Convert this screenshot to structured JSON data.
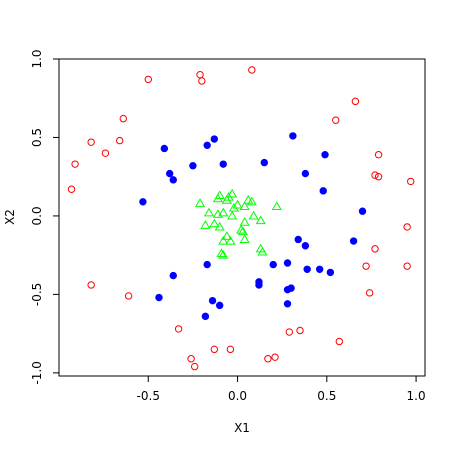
{
  "chart_data": {
    "type": "scatter",
    "title": "",
    "xlabel": "X1",
    "ylabel": "X2",
    "xlim": [
      -1.0,
      1.05
    ],
    "ylim": [
      -1.02,
      1.0
    ],
    "x_ticks": [
      -0.5,
      0.0,
      0.5,
      1.0
    ],
    "x_tick_labels": [
      "-0.5",
      "0.0",
      "0.5",
      "1.0"
    ],
    "y_ticks": [
      -1.0,
      -0.5,
      0.0,
      0.5,
      1.0
    ],
    "y_tick_labels": [
      "-1.0",
      "-0.5",
      "0.0",
      "0.5",
      "1.0"
    ],
    "grid": false,
    "series": [
      {
        "marker": "open-circle",
        "color": "#ff0000",
        "points": [
          [
            0.08,
            0.93
          ],
          [
            -0.21,
            0.9
          ],
          [
            -0.2,
            0.86
          ],
          [
            -0.5,
            0.87
          ],
          [
            -0.64,
            0.62
          ],
          [
            -0.82,
            0.47
          ],
          [
            -0.74,
            0.4
          ],
          [
            -0.66,
            0.48
          ],
          [
            -0.91,
            0.33
          ],
          [
            -0.93,
            0.17
          ],
          [
            0.66,
            0.73
          ],
          [
            0.55,
            0.61
          ],
          [
            0.79,
            0.39
          ],
          [
            0.77,
            0.26
          ],
          [
            0.79,
            0.25
          ],
          [
            0.97,
            0.22
          ],
          [
            0.95,
            -0.07
          ],
          [
            0.77,
            -0.21
          ],
          [
            0.72,
            -0.32
          ],
          [
            0.95,
            -0.32
          ],
          [
            0.74,
            -0.49
          ],
          [
            -0.82,
            -0.44
          ],
          [
            -0.61,
            -0.51
          ],
          [
            -0.33,
            -0.72
          ],
          [
            -0.13,
            -0.85
          ],
          [
            -0.04,
            -0.85
          ],
          [
            0.29,
            -0.74
          ],
          [
            0.35,
            -0.73
          ],
          [
            0.57,
            -0.8
          ],
          [
            -0.26,
            -0.91
          ],
          [
            -0.24,
            -0.96
          ],
          [
            0.17,
            -0.91
          ],
          [
            0.21,
            -0.9
          ]
        ]
      },
      {
        "marker": "filled-circle",
        "color": "#0000ff",
        "points": [
          [
            -0.13,
            0.49
          ],
          [
            -0.17,
            0.45
          ],
          [
            -0.41,
            0.43
          ],
          [
            -0.38,
            0.27
          ],
          [
            -0.36,
            0.23
          ],
          [
            -0.25,
            0.32
          ],
          [
            -0.08,
            0.33
          ],
          [
            0.15,
            0.34
          ],
          [
            0.31,
            0.51
          ],
          [
            0.49,
            0.39
          ],
          [
            0.38,
            0.27
          ],
          [
            0.48,
            0.16
          ],
          [
            -0.53,
            0.09
          ],
          [
            0.7,
            0.03
          ],
          [
            0.34,
            -0.15
          ],
          [
            0.38,
            -0.19
          ],
          [
            0.65,
            -0.16
          ],
          [
            -0.17,
            -0.31
          ],
          [
            0.2,
            -0.31
          ],
          [
            0.28,
            -0.3
          ],
          [
            0.39,
            -0.34
          ],
          [
            0.46,
            -0.34
          ],
          [
            0.52,
            -0.36
          ],
          [
            -0.36,
            -0.38
          ],
          [
            0.12,
            -0.42
          ],
          [
            0.12,
            -0.44
          ],
          [
            0.3,
            -0.46
          ],
          [
            0.28,
            -0.47
          ],
          [
            -0.44,
            -0.52
          ],
          [
            -0.14,
            -0.54
          ],
          [
            -0.1,
            -0.57
          ],
          [
            0.28,
            -0.56
          ],
          [
            -0.18,
            -0.64
          ]
        ]
      },
      {
        "marker": "open-triangle",
        "color": "#00ff00",
        "points": [
          [
            -0.03,
            0.14
          ],
          [
            -0.05,
            0.12
          ],
          [
            -0.1,
            0.13
          ],
          [
            -0.11,
            0.11
          ],
          [
            -0.06,
            0.1
          ],
          [
            0.06,
            0.1
          ],
          [
            0.08,
            0.09
          ],
          [
            -0.21,
            0.08
          ],
          [
            0.0,
            0.07
          ],
          [
            0.04,
            0.06
          ],
          [
            -0.02,
            0.05
          ],
          [
            0.22,
            0.06
          ],
          [
            -0.16,
            0.02
          ],
          [
            -0.11,
            0.01
          ],
          [
            -0.08,
            0.02
          ],
          [
            -0.03,
            0.0
          ],
          [
            0.09,
            0.0
          ],
          [
            0.13,
            -0.03
          ],
          [
            0.04,
            -0.04
          ],
          [
            -0.18,
            -0.06
          ],
          [
            -0.13,
            -0.05
          ],
          [
            -0.1,
            -0.07
          ],
          [
            0.02,
            -0.09
          ],
          [
            0.03,
            -0.1
          ],
          [
            -0.06,
            -0.13
          ],
          [
            -0.04,
            -0.16
          ],
          [
            0.04,
            -0.15
          ],
          [
            0.13,
            -0.21
          ],
          [
            -0.08,
            -0.16
          ],
          [
            0.14,
            -0.23
          ],
          [
            -0.09,
            -0.24
          ],
          [
            -0.08,
            -0.25
          ]
        ]
      }
    ]
  }
}
